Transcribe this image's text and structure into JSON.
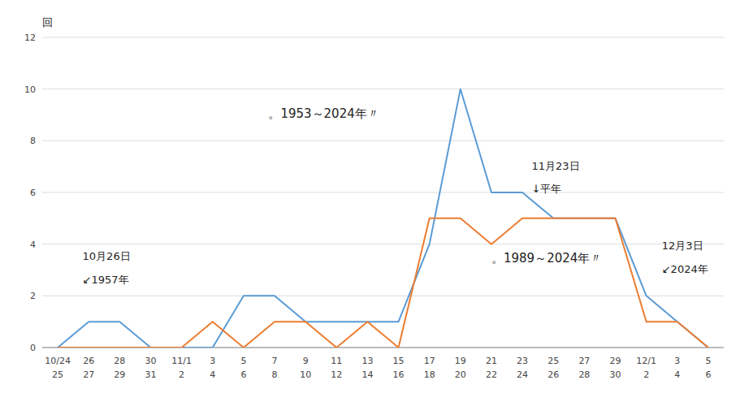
{
  "chart_data": {
    "type": "line",
    "y_label": "回",
    "categories": [
      [
        "10/24",
        "25"
      ],
      [
        "26",
        "27"
      ],
      [
        "28",
        "29"
      ],
      [
        "30",
        "31"
      ],
      [
        "11/1",
        "2"
      ],
      [
        "3",
        "4"
      ],
      [
        "5",
        "6"
      ],
      [
        "7",
        "8"
      ],
      [
        "9",
        "10"
      ],
      [
        "11",
        "12"
      ],
      [
        "13",
        "14"
      ],
      [
        "15",
        "16"
      ],
      [
        "17",
        "18"
      ],
      [
        "19",
        "20"
      ],
      [
        "21",
        "22"
      ],
      [
        "23",
        "24"
      ],
      [
        "25",
        "26"
      ],
      [
        "27",
        "28"
      ],
      [
        "29",
        "30"
      ],
      [
        "12/1",
        "2"
      ],
      [
        "3",
        "4"
      ],
      [
        "5",
        "6"
      ]
    ],
    "series": [
      {
        "color": "#5B9BD5",
        "values": [
          0,
          1,
          1,
          0,
          0,
          0,
          2,
          2,
          1,
          1,
          1,
          1,
          4,
          10,
          6,
          6,
          5,
          5,
          5,
          2,
          1,
          0
        ]
      },
      {
        "color": "#ED7D31",
        "values": [
          0,
          0,
          0,
          0,
          0,
          1,
          0,
          1,
          1,
          0,
          1,
          0,
          5,
          5,
          4,
          5,
          5,
          5,
          5,
          1,
          1,
          0
        ]
      }
    ],
    "annotations": [
      "10月26日",
      "↙1957年",
      "。1953～2024年〃",
      "11月23日",
      "↓平年",
      "。1989～2024年〃",
      "12月3日",
      "↙2024年"
    ],
    "ylim": [
      0,
      12
    ],
    "yticks": [
      0,
      2,
      4,
      6,
      8,
      10,
      12
    ],
    "grid": true
  }
}
